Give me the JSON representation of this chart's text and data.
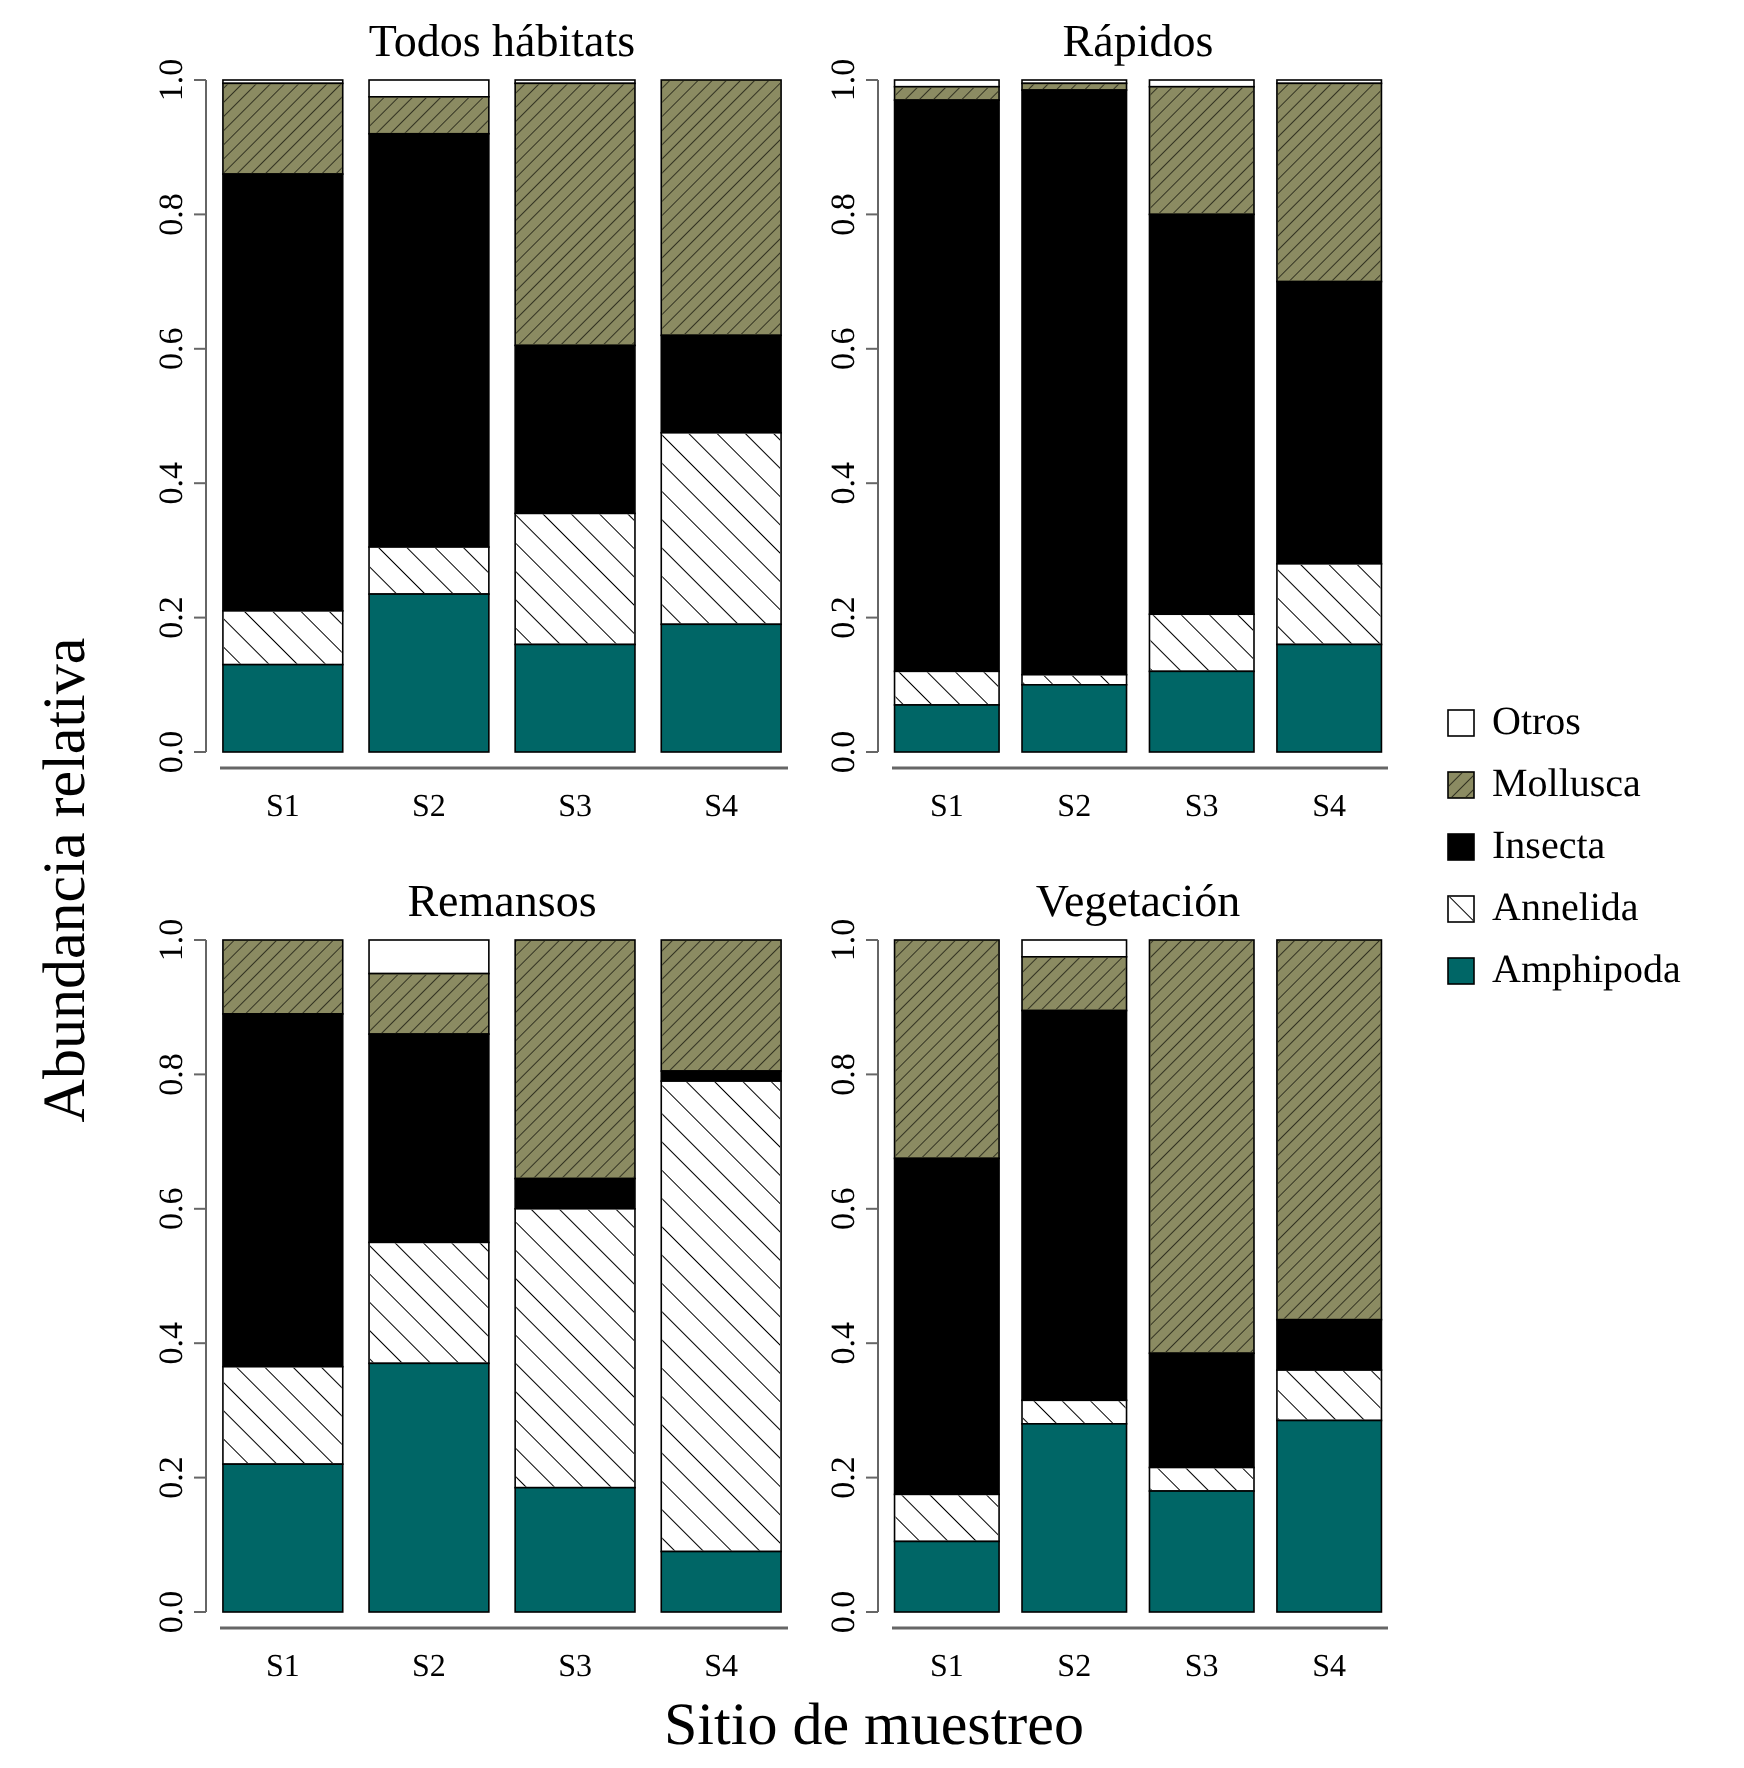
{
  "chart_data": [
    {
      "type": "bar",
      "title": "Todos hábitats",
      "ylabel": "Abundancia relativa",
      "stacked": true,
      "categories": [
        "S1",
        "S2",
        "S3",
        "S4"
      ],
      "ylim": [
        0,
        1
      ],
      "yticks": [
        {
          "value": 0,
          "label": "0.0"
        },
        {
          "value": 0.2,
          "label": "0.2"
        },
        {
          "value": 0.4,
          "label": "0.4"
        },
        {
          "value": 0.6,
          "label": "0.6"
        },
        {
          "value": 0.8,
          "label": "0.8"
        },
        {
          "value": 1,
          "label": "1.0"
        }
      ],
      "legend": "right",
      "series": [
        {
          "name": "Amphipoda",
          "color": "#006666",
          "values": [
            0.13,
            0.235,
            0.16,
            0.19
          ]
        },
        {
          "name": "Annelida",
          "color": "#ffffff",
          "values": [
            0.08,
            0.07,
            0.195,
            0.285
          ]
        },
        {
          "name": "Insecta",
          "color": "#000000",
          "values": [
            0.65,
            0.615,
            0.25,
            0.145
          ]
        },
        {
          "name": "Mollusca",
          "color": "#8b8b62",
          "values": [
            0.135,
            0.055,
            0.39,
            0.38
          ]
        },
        {
          "name": "Otros",
          "color": "#ffffff",
          "values": [
            0.005,
            0.025,
            0.005,
            0
          ]
        }
      ]
    },
    {
      "type": "bar",
      "title": "Rápidos",
      "stacked": true,
      "categories": [
        "S1",
        "S2",
        "S3",
        "S4"
      ],
      "ylim": [
        0,
        1
      ],
      "yticks": [
        {
          "value": 0,
          "label": "0.0"
        },
        {
          "value": 0.2,
          "label": "0.2"
        },
        {
          "value": 0.4,
          "label": "0.4"
        },
        {
          "value": 0.6,
          "label": "0.6"
        },
        {
          "value": 0.8,
          "label": "0.8"
        },
        {
          "value": 1,
          "label": "1.0"
        }
      ],
      "legend": "right",
      "series": [
        {
          "name": "Amphipoda",
          "color": "#006666",
          "values": [
            0.07,
            0.1,
            0.12,
            0.16
          ]
        },
        {
          "name": "Annelida",
          "color": "#ffffff",
          "values": [
            0.05,
            0.015,
            0.085,
            0.12
          ]
        },
        {
          "name": "Insecta",
          "color": "#000000",
          "values": [
            0.85,
            0.87,
            0.595,
            0.42
          ]
        },
        {
          "name": "Mollusca",
          "color": "#8b8b62",
          "values": [
            0.02,
            0.01,
            0.19,
            0.295
          ]
        },
        {
          "name": "Otros",
          "color": "#ffffff",
          "values": [
            0.01,
            0.005,
            0.01,
            0.005
          ]
        }
      ]
    },
    {
      "type": "bar",
      "title": "Remansos",
      "xlabel": "Sitio de muestreo",
      "stacked": true,
      "categories": [
        "S1",
        "S2",
        "S3",
        "S4"
      ],
      "ylim": [
        0,
        1
      ],
      "yticks": [
        {
          "value": 0,
          "label": "0.0"
        },
        {
          "value": 0.2,
          "label": "0.2"
        },
        {
          "value": 0.4,
          "label": "0.4"
        },
        {
          "value": 0.6,
          "label": "0.6"
        },
        {
          "value": 0.8,
          "label": "0.8"
        },
        {
          "value": 1,
          "label": "1.0"
        }
      ],
      "legend": "right",
      "series": [
        {
          "name": "Amphipoda",
          "color": "#006666",
          "values": [
            0.22,
            0.37,
            0.185,
            0.09
          ]
        },
        {
          "name": "Annelida",
          "color": "#ffffff",
          "values": [
            0.145,
            0.18,
            0.415,
            0.7
          ]
        },
        {
          "name": "Insecta",
          "color": "#000000",
          "values": [
            0.525,
            0.31,
            0.045,
            0.015
          ]
        },
        {
          "name": "Mollusca",
          "color": "#8b8b62",
          "values": [
            0.11,
            0.09,
            0.355,
            0.195
          ]
        },
        {
          "name": "Otros",
          "color": "#ffffff",
          "values": [
            0,
            0.05,
            0,
            0
          ]
        }
      ]
    },
    {
      "type": "bar",
      "title": "Vegetación",
      "stacked": true,
      "categories": [
        "S1",
        "S2",
        "S3",
        "S4"
      ],
      "ylim": [
        0,
        1
      ],
      "yticks": [
        {
          "value": 0,
          "label": "0.0"
        },
        {
          "value": 0.2,
          "label": "0.2"
        },
        {
          "value": 0.4,
          "label": "0.4"
        },
        {
          "value": 0.6,
          "label": "0.6"
        },
        {
          "value": 0.8,
          "label": "0.8"
        },
        {
          "value": 1,
          "label": "1.0"
        }
      ],
      "legend": "right",
      "series": [
        {
          "name": "Amphipoda",
          "color": "#006666",
          "values": [
            0.105,
            0.28,
            0.18,
            0.285
          ]
        },
        {
          "name": "Annelida",
          "color": "#ffffff",
          "values": [
            0.07,
            0.035,
            0.035,
            0.075
          ]
        },
        {
          "name": "Insecta",
          "color": "#000000",
          "values": [
            0.5,
            0.58,
            0.17,
            0.075
          ]
        },
        {
          "name": "Mollusca",
          "color": "#8b8b62",
          "values": [
            0.325,
            0.08,
            0.615,
            0.565
          ]
        },
        {
          "name": "Otros",
          "color": "#ffffff",
          "values": [
            0,
            0.025,
            0,
            0
          ]
        }
      ]
    }
  ]
}
